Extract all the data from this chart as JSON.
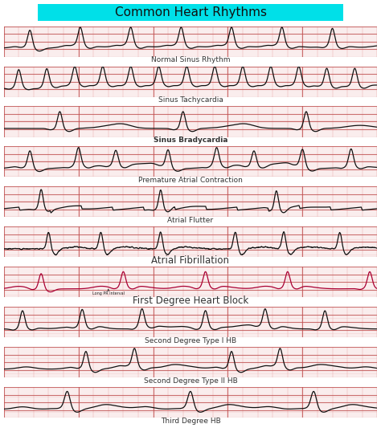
{
  "title": "Common Heart Rhythms",
  "title_bg": "#00E0E8",
  "title_color": "#111111",
  "title_fontsize": 11,
  "bg_color": "#FFFFFF",
  "grid_minor_color": "#E8A0A0",
  "grid_major_color": "#C05050",
  "rhythms": [
    {
      "name": "Normal Sinus Rhythm",
      "label_style": "normal",
      "label_size": 6.5,
      "label_color": "#333333",
      "label_bold": false
    },
    {
      "name": "Sinus Tachycardia",
      "label_style": "normal",
      "label_size": 6.5,
      "label_color": "#333333",
      "label_bold": false
    },
    {
      "name": "Sinus Bradycardia",
      "label_style": "bold",
      "label_size": 6.5,
      "label_color": "#333333",
      "label_bold": true
    },
    {
      "name": "Premature Atrial Contraction",
      "label_style": "normal",
      "label_size": 6.5,
      "label_color": "#333333",
      "label_bold": false
    },
    {
      "name": "Atrial Flutter",
      "label_style": "normal",
      "label_size": 6.5,
      "label_color": "#333333",
      "label_bold": false
    },
    {
      "name": "Atrial Fibrillation",
      "label_style": "normal",
      "label_size": 8.5,
      "label_color": "#333333",
      "label_bold": false
    },
    {
      "name": "First Degree Heart Block",
      "label_style": "normal",
      "label_size": 8.5,
      "label_color": "#333333",
      "label_bold": false
    },
    {
      "name": "Second Degree Type I HB",
      "label_style": "normal",
      "label_size": 6.5,
      "label_color": "#333333",
      "label_bold": false
    },
    {
      "name": "Second Degree Type II HB",
      "label_style": "normal",
      "label_size": 6.5,
      "label_color": "#333333",
      "label_bold": false
    },
    {
      "name": "Third Degree HB",
      "label_style": "normal",
      "label_size": 6.5,
      "label_color": "#333333",
      "label_bold": false
    }
  ],
  "strip_bg_colors": [
    "#FFCCCC",
    "#FFCCCC",
    "#FFF0F0",
    "#FFCCCC",
    "#FFCCCC",
    "#F0B0C8",
    "#F0F0F8",
    "#FFCCCC",
    "#FFCCCC",
    "#FFCCCC"
  ],
  "waveform_colors": [
    "#111111",
    "#111111",
    "#111111",
    "#111111",
    "#111111",
    "#111111",
    "#AA0033",
    "#111111",
    "#111111",
    "#111111"
  ],
  "annotation_color": "#222222"
}
